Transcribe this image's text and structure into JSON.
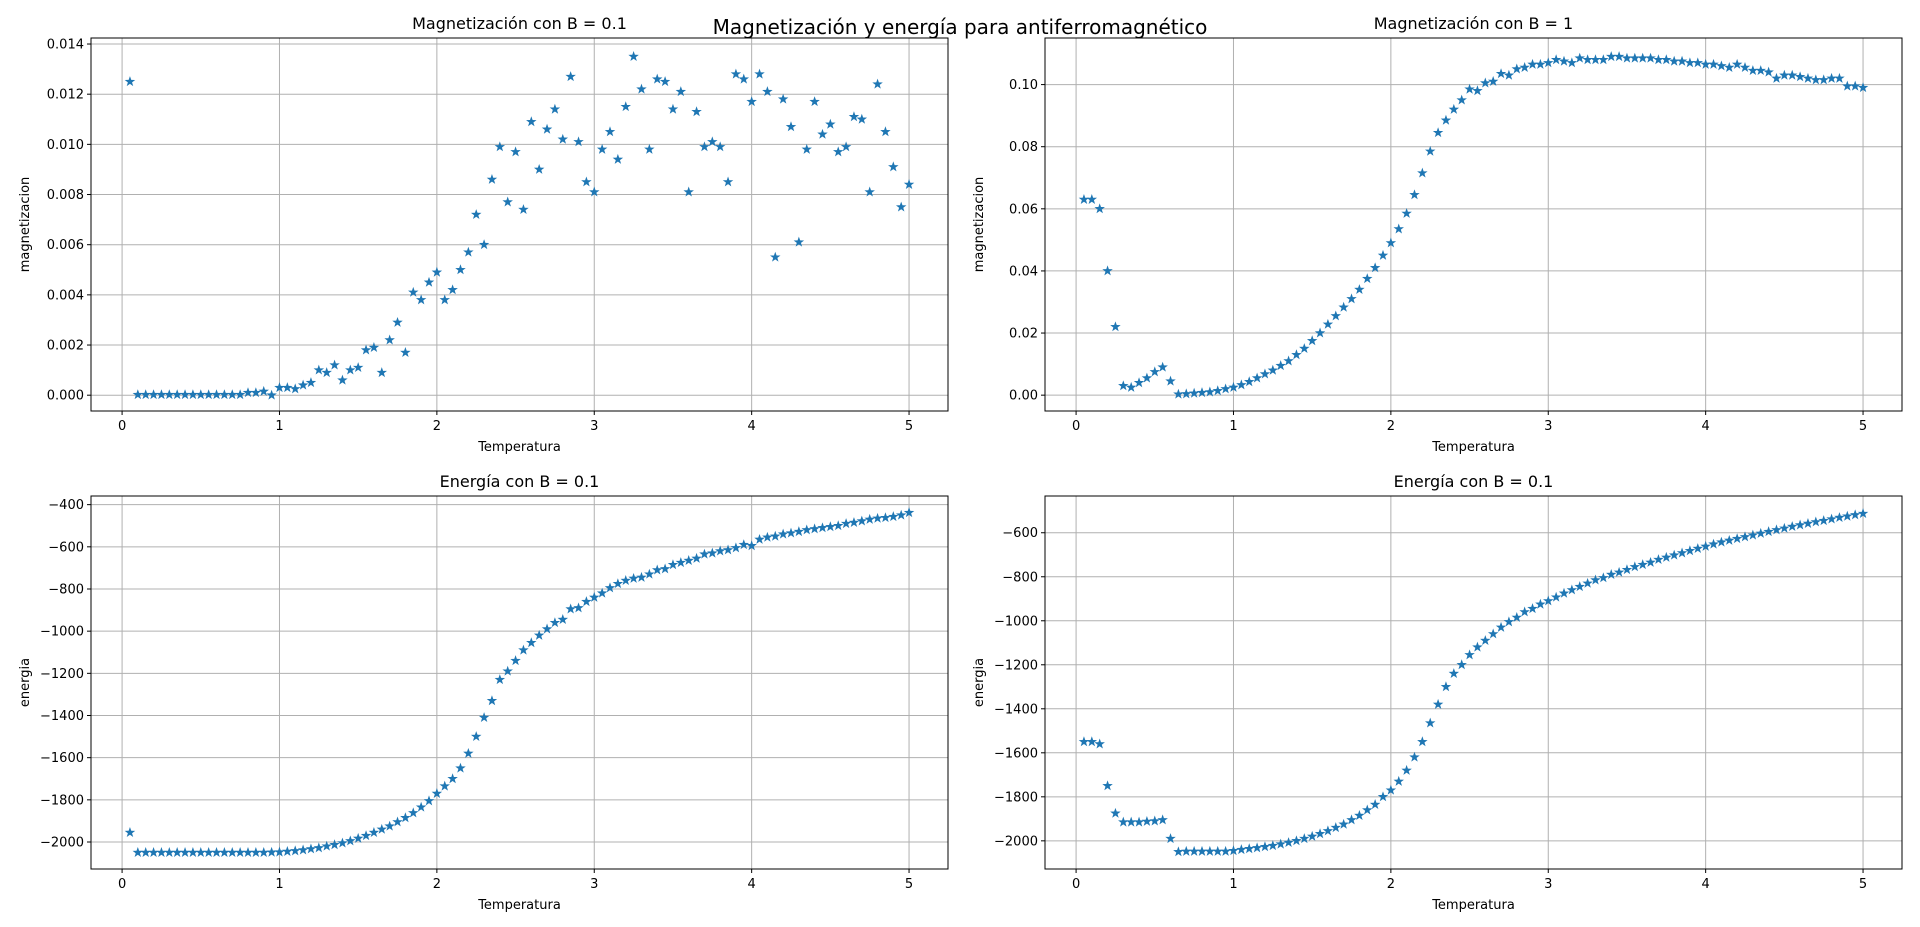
{
  "title": "Magnetización y energía para antiferromagnético",
  "chart_data": [
    {
      "type": "scatter",
      "title": "Magnetización con B = 0.1",
      "xlabel": "Temperatura",
      "ylabel": "magnetizacion",
      "marker": "*",
      "color": "#1f77b4",
      "grid": true,
      "x": [
        0.05,
        0.1,
        0.15,
        0.2,
        0.25,
        0.3,
        0.35,
        0.4,
        0.45,
        0.5,
        0.55,
        0.6,
        0.65,
        0.7,
        0.75,
        0.8,
        0.85,
        0.9,
        0.95,
        1.0,
        1.05,
        1.1,
        1.15,
        1.2,
        1.25,
        1.3,
        1.35,
        1.4,
        1.45,
        1.5,
        1.55,
        1.6,
        1.65,
        1.7,
        1.75,
        1.8,
        1.85,
        1.9,
        1.95,
        2.0,
        2.05,
        2.1,
        2.15,
        2.2,
        2.25,
        2.3,
        2.35,
        2.4,
        2.45,
        2.5,
        2.55,
        2.6,
        2.65,
        2.7,
        2.75,
        2.8,
        2.85,
        2.9,
        2.95,
        3.0,
        3.05,
        3.1,
        3.15,
        3.2,
        3.25,
        3.3,
        3.35,
        3.4,
        3.45,
        3.5,
        3.55,
        3.6,
        3.65,
        3.7,
        3.75,
        3.8,
        3.85,
        3.9,
        3.95,
        4.0,
        4.05,
        4.1,
        4.15,
        4.2,
        4.25,
        4.3,
        4.35,
        4.4,
        4.45,
        4.5,
        4.55,
        4.6,
        4.65,
        4.7,
        4.75,
        4.8,
        4.85,
        4.9,
        4.95,
        5.0
      ],
      "values": [
        0.0125,
        2e-05,
        2e-05,
        2e-05,
        2e-05,
        2e-05,
        2e-05,
        2e-05,
        2e-05,
        2e-05,
        2e-05,
        2e-05,
        2e-05,
        2e-05,
        2e-05,
        0.0001,
        0.0001,
        0.00015,
        0.0,
        0.0003,
        0.0003,
        0.00025,
        0.0004,
        0.0005,
        0.001,
        0.0009,
        0.0012,
        0.0006,
        0.001,
        0.0011,
        0.0018,
        0.0019,
        0.0009,
        0.0022,
        0.0029,
        0.0017,
        0.0041,
        0.0038,
        0.0045,
        0.0049,
        0.0038,
        0.0042,
        0.005,
        0.0057,
        0.0072,
        0.006,
        0.0086,
        0.0099,
        0.0077,
        0.0097,
        0.0074,
        0.0109,
        0.009,
        0.0106,
        0.0114,
        0.0102,
        0.0127,
        0.0101,
        0.0085,
        0.0081,
        0.0098,
        0.0105,
        0.0094,
        0.0115,
        0.0135,
        0.0122,
        0.0098,
        0.0126,
        0.0125,
        0.0114,
        0.0121,
        0.0081,
        0.0113,
        0.0099,
        0.0101,
        0.0099,
        0.0085,
        0.0128,
        0.0126,
        0.0117,
        0.0128,
        0.0121,
        0.0055,
        0.0118,
        0.0107,
        0.0061,
        0.0098,
        0.0117,
        0.0104,
        0.0108,
        0.0097,
        0.0099,
        0.0111,
        0.011,
        0.0081,
        0.0124,
        0.0105,
        0.0091,
        0.0075,
        0.0084
      ],
      "xlim": [
        -0.1975,
        5.2475
      ],
      "xticks": [
        0,
        1,
        2,
        3,
        4,
        5
      ],
      "ylim": [
        -0.00063,
        0.01424
      ],
      "yticks": [
        {
          "value": 0,
          "label": "0.000"
        },
        {
          "value": 0.002,
          "label": "0.002"
        },
        {
          "value": 0.004,
          "label": "0.004"
        },
        {
          "value": 0.006,
          "label": "0.006"
        },
        {
          "value": 0.008,
          "label": "0.008"
        },
        {
          "value": 0.01,
          "label": "0.010"
        },
        {
          "value": 0.012,
          "label": "0.012"
        },
        {
          "value": 0.014,
          "label": "0.014"
        }
      ]
    },
    {
      "type": "scatter",
      "title": "Magnetización con B = 1",
      "xlabel": "Temperatura",
      "ylabel": "magnetizacion",
      "marker": "*",
      "color": "#1f77b4",
      "grid": true,
      "x": [
        0.05,
        0.1,
        0.15,
        0.2,
        0.25,
        0.3,
        0.35,
        0.4,
        0.45,
        0.5,
        0.55,
        0.6,
        0.65,
        0.7,
        0.75,
        0.8,
        0.85,
        0.9,
        0.95,
        1.0,
        1.05,
        1.1,
        1.15,
        1.2,
        1.25,
        1.3,
        1.35,
        1.4,
        1.45,
        1.5,
        1.55,
        1.6,
        1.65,
        1.7,
        1.75,
        1.8,
        1.85,
        1.9,
        1.95,
        2.0,
        2.05,
        2.1,
        2.15,
        2.2,
        2.25,
        2.3,
        2.35,
        2.4,
        2.45,
        2.5,
        2.55,
        2.6,
        2.65,
        2.7,
        2.75,
        2.8,
        2.85,
        2.9,
        2.95,
        3.0,
        3.05,
        3.1,
        3.15,
        3.2,
        3.25,
        3.3,
        3.35,
        3.4,
        3.45,
        3.5,
        3.55,
        3.6,
        3.65,
        3.7,
        3.75,
        3.8,
        3.85,
        3.9,
        3.95,
        4.0,
        4.05,
        4.1,
        4.15,
        4.2,
        4.25,
        4.3,
        4.35,
        4.4,
        4.45,
        4.5,
        4.55,
        4.6,
        4.65,
        4.7,
        4.75,
        4.8,
        4.85,
        4.9,
        4.95,
        5.0
      ],
      "values": [
        0.063,
        0.063,
        0.06,
        0.04,
        0.022,
        0.003,
        0.0025,
        0.004,
        0.0055,
        0.0075,
        0.009,
        0.0045,
        0.0003,
        0.0004,
        0.0006,
        0.0008,
        0.001,
        0.0014,
        0.002,
        0.0025,
        0.0033,
        0.0043,
        0.0055,
        0.0068,
        0.008,
        0.0095,
        0.011,
        0.013,
        0.015,
        0.0175,
        0.02,
        0.0228,
        0.0255,
        0.0283,
        0.031,
        0.034,
        0.0375,
        0.041,
        0.045,
        0.049,
        0.0535,
        0.0585,
        0.0645,
        0.0715,
        0.0785,
        0.0845,
        0.0885,
        0.092,
        0.095,
        0.0985,
        0.098,
        0.1005,
        0.101,
        0.1035,
        0.103,
        0.105,
        0.1055,
        0.1065,
        0.1065,
        0.107,
        0.108,
        0.1075,
        0.107,
        0.1085,
        0.108,
        0.108,
        0.108,
        0.109,
        0.109,
        0.1085,
        0.1085,
        0.1085,
        0.1085,
        0.108,
        0.108,
        0.1075,
        0.1075,
        0.107,
        0.107,
        0.1065,
        0.1065,
        0.106,
        0.1055,
        0.1065,
        0.1055,
        0.1045,
        0.1045,
        0.104,
        0.102,
        0.103,
        0.103,
        0.1025,
        0.102,
        0.1015,
        0.1015,
        0.102,
        0.102,
        0.0995,
        0.0995,
        0.099
      ],
      "xlim": [
        -0.1975,
        5.2475
      ],
      "xticks": [
        0,
        1,
        2,
        3,
        4,
        5
      ],
      "ylim": [
        -0.0051,
        0.115
      ],
      "yticks": [
        {
          "value": 0,
          "label": "0.00"
        },
        {
          "value": 0.02,
          "label": "0.02"
        },
        {
          "value": 0.04,
          "label": "0.04"
        },
        {
          "value": 0.06,
          "label": "0.06"
        },
        {
          "value": 0.08,
          "label": "0.08"
        },
        {
          "value": 0.1,
          "label": "0.10"
        }
      ]
    },
    {
      "type": "scatter",
      "title": "Energía con B = 0.1",
      "xlabel": "Temperatura",
      "ylabel": "energia",
      "marker": "*",
      "color": "#1f77b4",
      "grid": true,
      "x": [
        0.05,
        0.1,
        0.15,
        0.2,
        0.25,
        0.3,
        0.35,
        0.4,
        0.45,
        0.5,
        0.55,
        0.6,
        0.65,
        0.7,
        0.75,
        0.8,
        0.85,
        0.9,
        0.95,
        1.0,
        1.05,
        1.1,
        1.15,
        1.2,
        1.25,
        1.3,
        1.35,
        1.4,
        1.45,
        1.5,
        1.55,
        1.6,
        1.65,
        1.7,
        1.75,
        1.8,
        1.85,
        1.9,
        1.95,
        2.0,
        2.05,
        2.1,
        2.15,
        2.2,
        2.25,
        2.3,
        2.35,
        2.4,
        2.45,
        2.5,
        2.55,
        2.6,
        2.65,
        2.7,
        2.75,
        2.8,
        2.85,
        2.9,
        2.95,
        3.0,
        3.05,
        3.1,
        3.15,
        3.2,
        3.25,
        3.3,
        3.35,
        3.4,
        3.45,
        3.5,
        3.55,
        3.6,
        3.65,
        3.7,
        3.75,
        3.8,
        3.85,
        3.9,
        3.95,
        4.0,
        4.05,
        4.1,
        4.15,
        4.2,
        4.25,
        4.3,
        4.35,
        4.4,
        4.45,
        4.5,
        4.55,
        4.6,
        4.65,
        4.7,
        4.75,
        4.8,
        4.85,
        4.9,
        4.95,
        5.0
      ],
      "values": [
        -1955,
        -2050,
        -2050,
        -2050,
        -2050,
        -2050,
        -2050,
        -2050,
        -2050,
        -2050,
        -2050,
        -2050,
        -2050,
        -2050,
        -2050,
        -2050,
        -2050,
        -2050,
        -2049,
        -2048,
        -2045,
        -2042,
        -2038,
        -2033,
        -2028,
        -2020,
        -2013,
        -2005,
        -1995,
        -1983,
        -1970,
        -1955,
        -1940,
        -1925,
        -1905,
        -1885,
        -1862,
        -1835,
        -1805,
        -1770,
        -1735,
        -1700,
        -1650,
        -1580,
        -1500,
        -1410,
        -1330,
        -1230,
        -1190,
        -1140,
        -1090,
        -1055,
        -1020,
        -990,
        -960,
        -945,
        -895,
        -890,
        -860,
        -840,
        -820,
        -795,
        -775,
        -760,
        -750,
        -745,
        -730,
        -710,
        -705,
        -685,
        -675,
        -665,
        -655,
        -635,
        -630,
        -620,
        -615,
        -605,
        -590,
        -595,
        -565,
        -555,
        -550,
        -540,
        -535,
        -528,
        -520,
        -515,
        -510,
        -505,
        -500,
        -490,
        -485,
        -478,
        -470,
        -465,
        -462,
        -457,
        -450,
        -438
      ],
      "xlim": [
        -0.1975,
        5.2475
      ],
      "xticks": [
        0,
        1,
        2,
        3,
        4,
        5
      ],
      "ylim": [
        -2128,
        -359
      ],
      "yticks": [
        {
          "value": -2000,
          "label": "−2000"
        },
        {
          "value": -1800,
          "label": "−1800"
        },
        {
          "value": -1600,
          "label": "−1600"
        },
        {
          "value": -1400,
          "label": "−1400"
        },
        {
          "value": -1200,
          "label": "−1200"
        },
        {
          "value": -1000,
          "label": "−1000"
        },
        {
          "value": -800,
          "label": "−800"
        },
        {
          "value": -600,
          "label": "−600"
        },
        {
          "value": -400,
          "label": "−400"
        }
      ]
    },
    {
      "type": "scatter",
      "title": "Energía con B = 0.1",
      "xlabel": "Temperatura",
      "ylabel": "energia",
      "marker": "*",
      "color": "#1f77b4",
      "grid": true,
      "x": [
        0.05,
        0.1,
        0.15,
        0.2,
        0.25,
        0.3,
        0.35,
        0.4,
        0.45,
        0.5,
        0.55,
        0.6,
        0.65,
        0.7,
        0.75,
        0.8,
        0.85,
        0.9,
        0.95,
        1.0,
        1.05,
        1.1,
        1.15,
        1.2,
        1.25,
        1.3,
        1.35,
        1.4,
        1.45,
        1.5,
        1.55,
        1.6,
        1.65,
        1.7,
        1.75,
        1.8,
        1.85,
        1.9,
        1.95,
        2.0,
        2.05,
        2.1,
        2.15,
        2.2,
        2.25,
        2.3,
        2.35,
        2.4,
        2.45,
        2.5,
        2.55,
        2.6,
        2.65,
        2.7,
        2.75,
        2.8,
        2.85,
        2.9,
        2.95,
        3.0,
        3.05,
        3.1,
        3.15,
        3.2,
        3.25,
        3.3,
        3.35,
        3.4,
        3.45,
        3.5,
        3.55,
        3.6,
        3.65,
        3.7,
        3.75,
        3.8,
        3.85,
        3.9,
        3.95,
        4.0,
        4.05,
        4.1,
        4.15,
        4.2,
        4.25,
        4.3,
        4.35,
        4.4,
        4.45,
        4.5,
        4.55,
        4.6,
        4.65,
        4.7,
        4.75,
        4.8,
        4.85,
        4.9,
        4.95,
        5.0
      ],
      "values": [
        -1550,
        -1550,
        -1560,
        -1750,
        -1875,
        -1915,
        -1915,
        -1915,
        -1912,
        -1910,
        -1905,
        -1990,
        -2050,
        -2048,
        -2048,
        -2048,
        -2048,
        -2048,
        -2048,
        -2045,
        -2040,
        -2036,
        -2032,
        -2027,
        -2022,
        -2015,
        -2008,
        -2000,
        -1990,
        -1980,
        -1968,
        -1955,
        -1940,
        -1925,
        -1905,
        -1885,
        -1860,
        -1835,
        -1800,
        -1770,
        -1730,
        -1680,
        -1620,
        -1550,
        -1465,
        -1380,
        -1300,
        -1240,
        -1200,
        -1155,
        -1120,
        -1090,
        -1060,
        -1030,
        -1005,
        -985,
        -960,
        -945,
        -925,
        -910,
        -893,
        -875,
        -860,
        -845,
        -830,
        -815,
        -805,
        -790,
        -780,
        -768,
        -755,
        -745,
        -735,
        -722,
        -712,
        -702,
        -692,
        -682,
        -672,
        -662,
        -652,
        -643,
        -635,
        -627,
        -619,
        -611,
        -603,
        -595,
        -587,
        -580,
        -572,
        -565,
        -558,
        -551,
        -545,
        -538,
        -531,
        -525,
        -519,
        -513
      ],
      "xlim": [
        -0.1975,
        5.2475
      ],
      "xticks": [
        0,
        1,
        2,
        3,
        4,
        5
      ],
      "ylim": [
        -2128,
        -433
      ],
      "yticks": [
        {
          "value": -2000,
          "label": "−2000"
        },
        {
          "value": -1800,
          "label": "−1800"
        },
        {
          "value": -1600,
          "label": "−1600"
        },
        {
          "value": -1400,
          "label": "−1400"
        },
        {
          "value": -1200,
          "label": "−1200"
        },
        {
          "value": -1000,
          "label": "−1000"
        },
        {
          "value": -800,
          "label": "−800"
        },
        {
          "value": -600,
          "label": "−600"
        }
      ]
    }
  ]
}
